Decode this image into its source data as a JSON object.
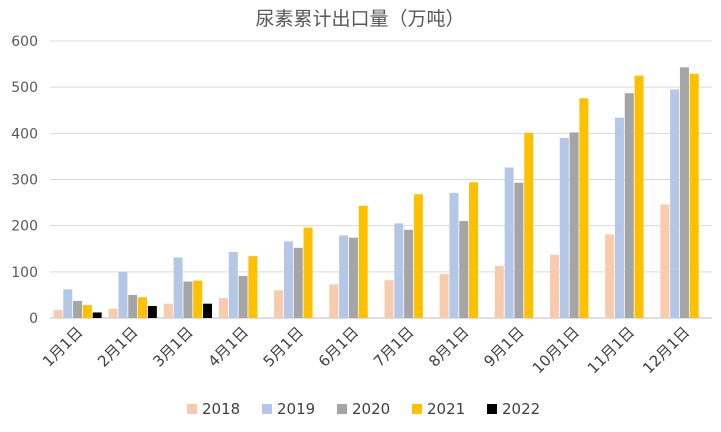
{
  "chart_data": {
    "type": "bar",
    "title": "尿素累计出口量（万吨）",
    "xlabel": "",
    "ylabel": "",
    "ylim": [
      0,
      600
    ],
    "yticks": [
      0,
      100,
      200,
      300,
      400,
      500,
      600
    ],
    "grid": true,
    "legend": "bottom",
    "categories": [
      "1月1日",
      "2月1日",
      "3月1日",
      "4月1日",
      "5月1日",
      "6月1日",
      "7月1日",
      "8月1日",
      "9月1日",
      "10月1日",
      "11月1日",
      "12月1日"
    ],
    "series": [
      {
        "name": "2018",
        "color": "#f8cbad",
        "values": [
          17,
          20,
          31,
          43,
          60,
          73,
          82,
          95,
          113,
          137,
          181,
          246
        ]
      },
      {
        "name": "2019",
        "color": "#b4c7e7",
        "values": [
          62,
          100,
          131,
          143,
          166,
          179,
          205,
          271,
          326,
          390,
          434,
          495
        ]
      },
      {
        "name": "2020",
        "color": "#a5a5a5",
        "values": [
          37,
          50,
          79,
          91,
          152,
          174,
          191,
          210,
          293,
          402,
          487,
          543
        ]
      },
      {
        "name": "2021",
        "color": "#ffc000",
        "values": [
          28,
          45,
          81,
          134,
          196,
          243,
          268,
          294,
          401,
          476,
          525,
          529
        ]
      },
      {
        "name": "2022",
        "color": "#000000",
        "values": [
          12,
          26,
          31,
          null,
          null,
          null,
          null,
          null,
          null,
          null,
          null,
          null
        ]
      }
    ]
  }
}
